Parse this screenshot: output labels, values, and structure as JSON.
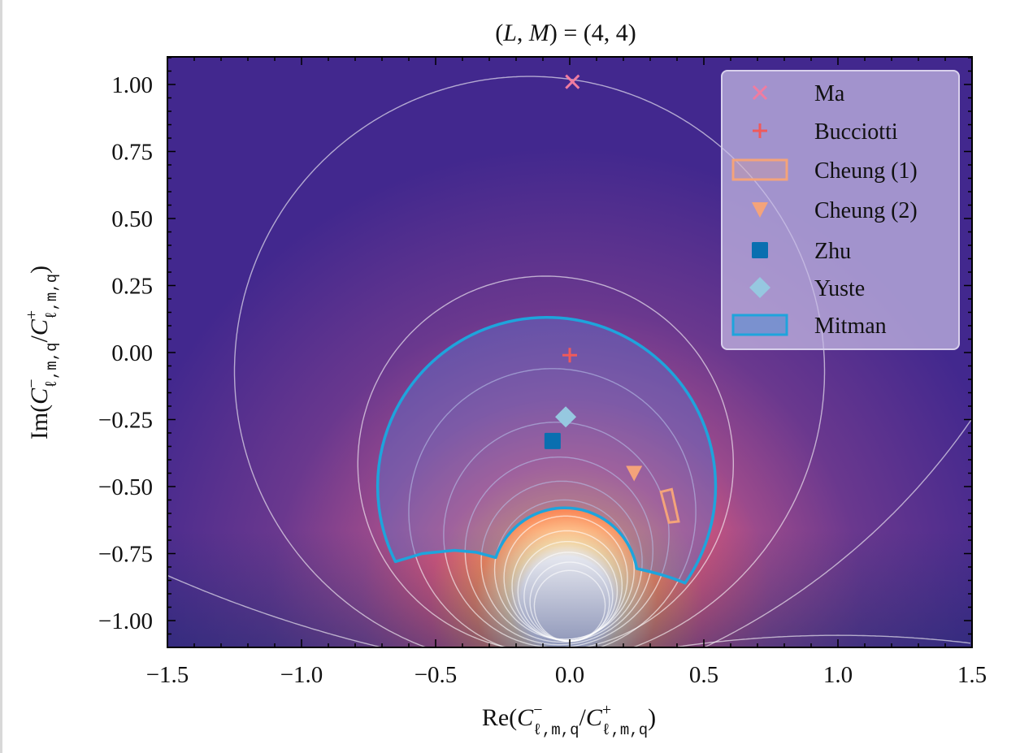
{
  "chart_data": {
    "type": "scatter",
    "title": {
      "open": "(",
      "var1": "L",
      "comma": ", ",
      "var2": "M",
      "rest": ") = (4, 4)"
    },
    "xlabel": {
      "prefix": "Re(",
      "sym": "C",
      "sup1": "−",
      "sub": "ℓ,m,q",
      "slash": "/",
      "sup2": "+",
      "suffix": ")"
    },
    "ylabel": {
      "prefix": "Im(",
      "sym": "C",
      "sup1": "−",
      "sub": "ℓ,m,q",
      "slash": "/",
      "sup2": "+",
      "suffix": ")"
    },
    "xlim": [
      -1.5,
      1.5
    ],
    "ylim": [
      -1.1,
      1.1
    ],
    "xticks": [
      -1.5,
      -1.0,
      -0.5,
      0.0,
      0.5,
      1.0,
      1.5
    ],
    "xtick_labels": [
      "−1.5",
      "−1.0",
      "−0.5",
      "0.0",
      "0.5",
      "1.0",
      "1.5"
    ],
    "yticks": [
      1.0,
      0.75,
      0.5,
      0.25,
      0.0,
      -0.25,
      -0.5,
      -0.75,
      -1.0
    ],
    "ytick_labels": [
      "1.00",
      "0.75",
      "0.50",
      "0.25",
      "0.00",
      "−0.25",
      "−0.50",
      "−0.75",
      "−1.00"
    ],
    "legend_position": "top-right",
    "background_center": [
      0.0,
      -0.93
    ],
    "points": [
      {
        "name": "Ma",
        "marker": "x",
        "color": "#f07ca0",
        "x": 0.01,
        "y": 1.01
      },
      {
        "name": "Bucciotti",
        "marker": "plus",
        "color": "#f05a5a",
        "x": 0.0,
        "y": -0.01
      },
      {
        "name": "Cheung (2)",
        "marker": "triangle-down",
        "color": "#f4a37a",
        "x": 0.24,
        "y": -0.45
      },
      {
        "name": "Zhu",
        "marker": "square",
        "color": "#0a6fb0",
        "x": -0.064,
        "y": -0.33
      },
      {
        "name": "Yuste",
        "marker": "diamond",
        "color": "#96c8e0",
        "x": -0.015,
        "y": -0.24
      }
    ],
    "regions": {
      "cheung1": {
        "name": "Cheung (1)",
        "color": "#f4a37a",
        "polygon": [
          [
            0.34,
            -0.52
          ],
          [
            0.38,
            -0.51
          ],
          [
            0.406,
            -0.63
          ],
          [
            0.37,
            -0.634
          ]
        ]
      },
      "mitman": {
        "name": "Mitman",
        "color": "#1ea4dc",
        "outer": {
          "cx": -0.08,
          "cy": -0.5,
          "r": 0.63,
          "from": [
            -0.65,
            -0.78
          ],
          "to": [
            0.43,
            -0.86
          ]
        },
        "right_edge": [
          [
            0.43,
            -0.86
          ],
          [
            0.36,
            -0.83
          ],
          [
            0.25,
            -0.806
          ]
        ],
        "inner": {
          "cx": -0.02,
          "cy": -0.857,
          "r": 0.272,
          "from": [
            0.25,
            -0.806
          ],
          "to": [
            -0.276,
            -0.765
          ]
        },
        "left_edge": [
          [
            -0.276,
            -0.765
          ],
          [
            -0.35,
            -0.745
          ],
          [
            -0.43,
            -0.738
          ],
          [
            -0.55,
            -0.75
          ],
          [
            -0.65,
            -0.78
          ]
        ]
      }
    },
    "contours": [
      [
        -0.15,
        -0.07,
        1.1
      ],
      [
        -0.09,
        -0.415,
        0.7
      ],
      [
        -0.065,
        -0.595,
        0.535
      ],
      [
        -0.05,
        -0.68,
        0.42
      ],
      [
        -0.04,
        -0.74,
        0.35
      ],
      [
        -0.03,
        -0.78,
        0.3
      ],
      [
        -0.02,
        -0.81,
        0.26
      ],
      [
        -0.015,
        -0.84,
        0.23
      ],
      [
        -0.01,
        -0.87,
        0.205
      ],
      [
        -0.008,
        -0.89,
        0.185
      ],
      [
        -0.005,
        -0.91,
        0.165
      ],
      [
        0,
        -0.93,
        0.148
      ],
      [
        0,
        -0.945,
        0.132
      ],
      [
        0.4,
        3.5,
        4.73
      ],
      [
        -0.6,
        1.2,
        2.55
      ],
      [
        1.0,
        -5.255,
        4.2
      ]
    ],
    "legend": [
      {
        "label": "Ma",
        "marker": "x",
        "color": "#f07ca0"
      },
      {
        "label": "Bucciotti",
        "marker": "plus",
        "color": "#f05a5a"
      },
      {
        "label": "Cheung (1)",
        "marker": "rect",
        "color": "#f4a37a"
      },
      {
        "label": "Cheung (2)",
        "marker": "triangle-down",
        "color": "#f4a37a"
      },
      {
        "label": "Zhu",
        "marker": "square",
        "color": "#0a6fb0"
      },
      {
        "label": "Yuste",
        "marker": "diamond",
        "color": "#96c8e0"
      },
      {
        "label": "Mitman",
        "marker": "rect-fill",
        "color": "#1ea4dc"
      }
    ]
  }
}
